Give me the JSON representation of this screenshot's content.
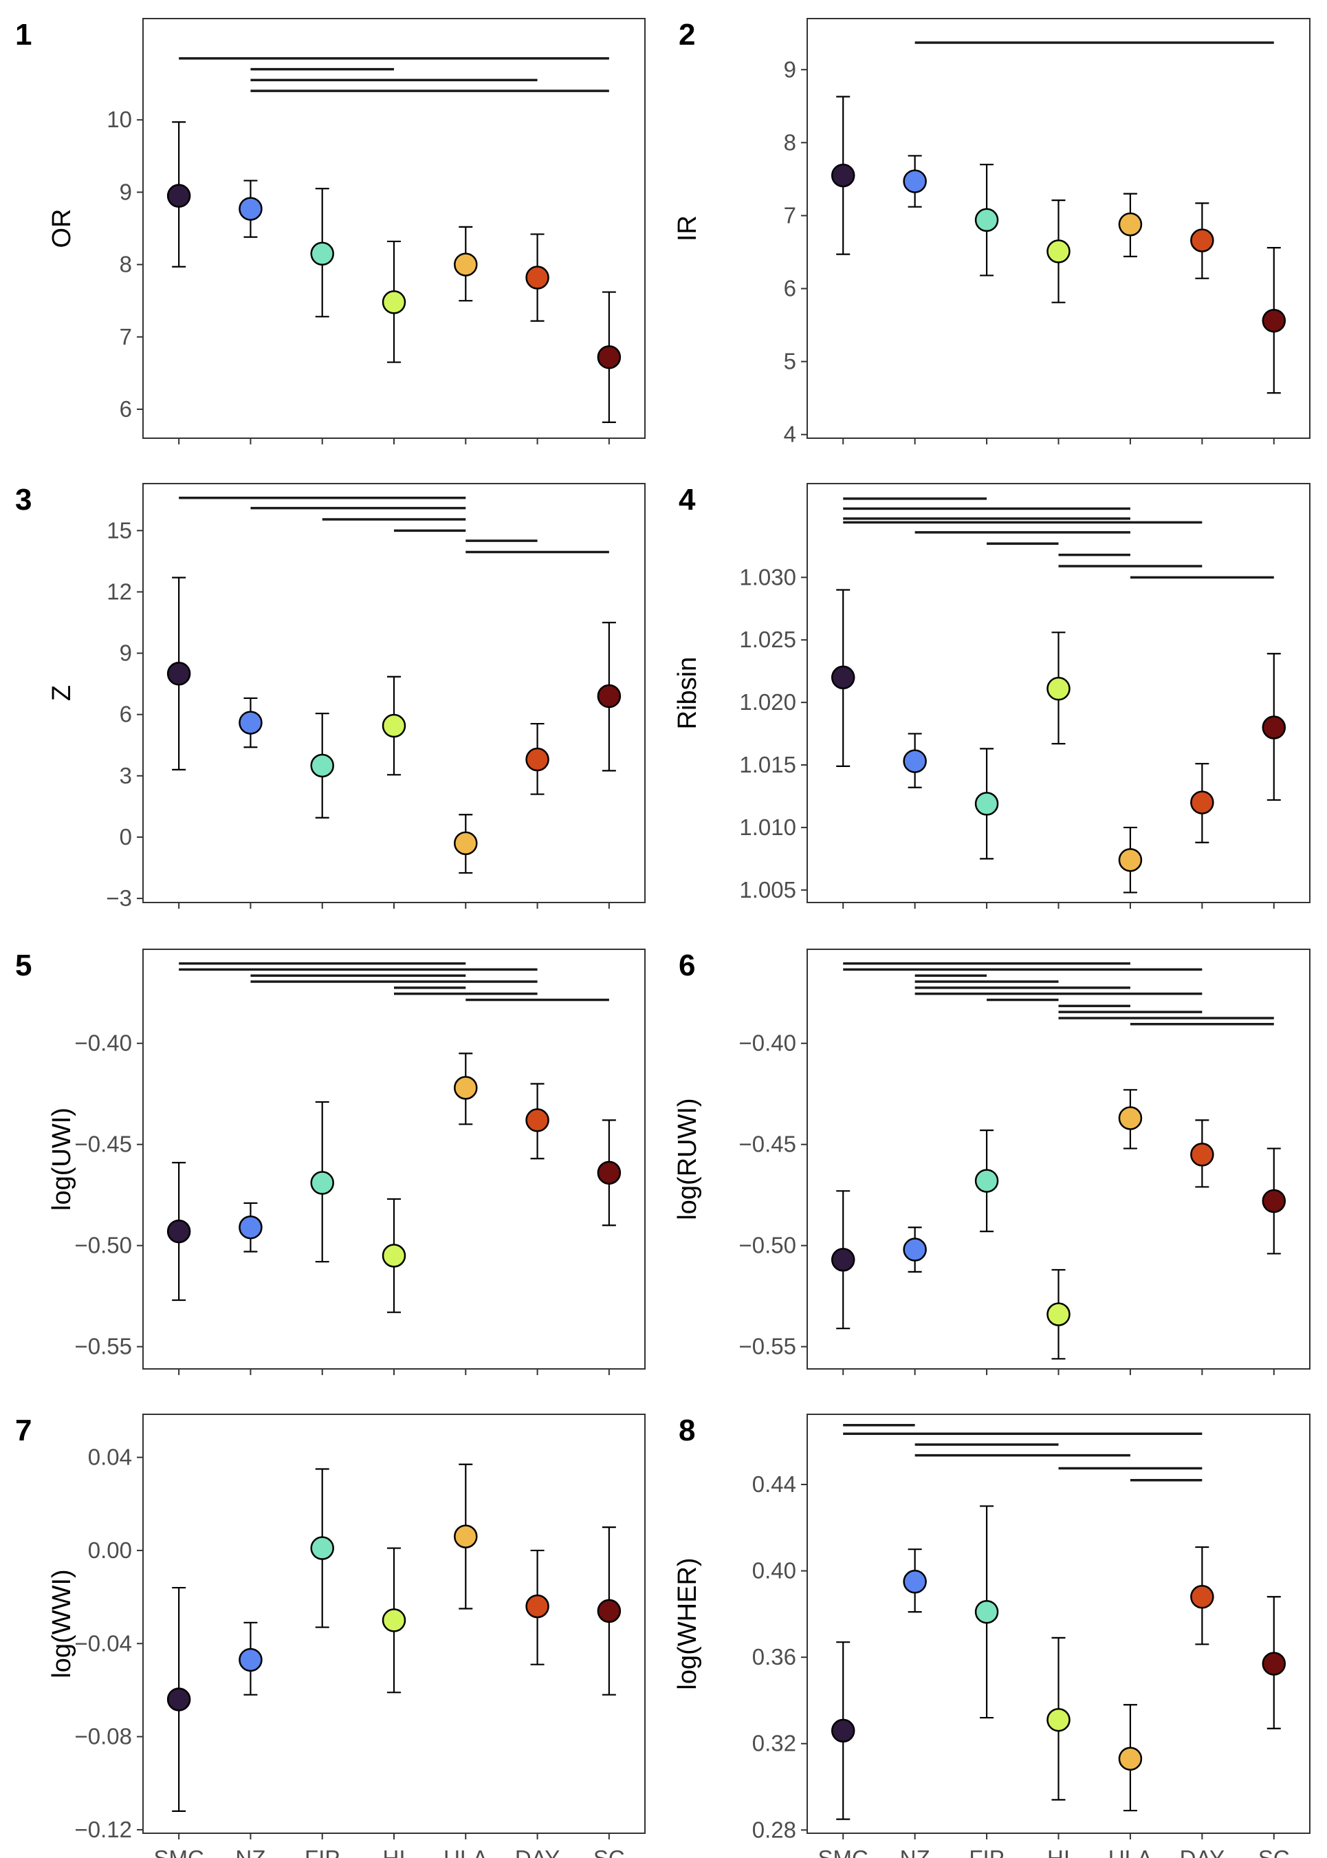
{
  "colors": {
    "SMC": "#2d1a3d",
    "NZ": "#5b85f0",
    "FIP": "#7be3bd",
    "HI": "#d1f55a",
    "ULA": "#f0b84a",
    "DAY": "#d2491a",
    "SC": "#6e0e0e"
  },
  "chart_data": [
    {
      "panel_label": "1",
      "type": "scatter",
      "ylabel": "OR",
      "categories": [
        "SMC",
        "NZ",
        "FIP",
        "HI",
        "ULA",
        "DAY",
        "SC"
      ],
      "values": [
        8.95,
        8.77,
        8.15,
        7.48,
        8.0,
        7.82,
        6.72
      ],
      "error_low": [
        7.97,
        8.38,
        7.28,
        6.65,
        7.5,
        7.22,
        5.82
      ],
      "error_high": [
        9.97,
        9.16,
        9.05,
        8.32,
        8.52,
        8.42,
        7.62
      ],
      "yticks": [
        6,
        7,
        8,
        9,
        10
      ],
      "ytick_labels": [
        "6",
        "7",
        "8",
        "9",
        "10"
      ],
      "ylim": [
        5.6,
        11.4
      ],
      "show_xticklabels": false,
      "comparison_bars": [
        {
          "from": "SMC",
          "to": "SC",
          "y": 10.85
        },
        {
          "from": "NZ",
          "to": "HI",
          "y": 10.7
        },
        {
          "from": "NZ",
          "to": "DAY",
          "y": 10.55
        },
        {
          "from": "NZ",
          "to": "SC",
          "y": 10.4
        }
      ]
    },
    {
      "panel_label": "2",
      "type": "scatter",
      "ylabel": "IR",
      "categories": [
        "SMC",
        "NZ",
        "FIP",
        "HI",
        "ULA",
        "DAY",
        "SC"
      ],
      "values": [
        7.55,
        7.47,
        6.94,
        6.51,
        6.88,
        6.66,
        5.56
      ],
      "error_low": [
        6.47,
        7.12,
        6.18,
        5.81,
        6.44,
        6.14,
        4.57
      ],
      "error_high": [
        8.63,
        7.82,
        7.7,
        7.21,
        7.3,
        7.17,
        6.56
      ],
      "yticks": [
        4,
        5,
        6,
        7,
        8,
        9
      ],
      "ytick_labels": [
        "4",
        "5",
        "6",
        "7",
        "8",
        "9"
      ],
      "ylim": [
        3.95,
        9.7
      ],
      "show_xticklabels": false,
      "comparison_bars": [
        {
          "from": "NZ",
          "to": "SC",
          "y": 9.37
        }
      ]
    },
    {
      "panel_label": "3",
      "type": "scatter",
      "ylabel": "Z",
      "categories": [
        "SMC",
        "NZ",
        "FIP",
        "HI",
        "ULA",
        "DAY",
        "SC"
      ],
      "values": [
        8.0,
        5.6,
        3.5,
        5.45,
        -0.3,
        3.8,
        6.9
      ],
      "error_low": [
        3.3,
        4.4,
        0.95,
        3.05,
        -1.75,
        2.1,
        3.25
      ],
      "error_high": [
        12.7,
        6.8,
        6.05,
        7.85,
        1.1,
        5.55,
        10.5
      ],
      "yticks": [
        -3,
        0,
        3,
        6,
        9,
        12,
        15
      ],
      "ytick_labels": [
        "−3",
        "0",
        "3",
        "6",
        "9",
        "12",
        "15"
      ],
      "ylim": [
        -3.2,
        17.3
      ],
      "show_xticklabels": false,
      "comparison_bars": [
        {
          "from": "SMC",
          "to": "ULA",
          "y": 16.6
        },
        {
          "from": "NZ",
          "to": "ULA",
          "y": 16.1
        },
        {
          "from": "FIP",
          "to": "ULA",
          "y": 15.55
        },
        {
          "from": "HI",
          "to": "ULA",
          "y": 15.0
        },
        {
          "from": "ULA",
          "to": "DAY",
          "y": 14.5
        },
        {
          "from": "ULA",
          "to": "SC",
          "y": 13.95
        }
      ]
    },
    {
      "panel_label": "4",
      "type": "scatter",
      "ylabel": "Ribsin",
      "categories": [
        "SMC",
        "NZ",
        "FIP",
        "HI",
        "ULA",
        "DAY",
        "SC"
      ],
      "values": [
        1.022,
        1.0153,
        1.0119,
        1.0211,
        1.0074,
        1.012,
        1.018
      ],
      "error_low": [
        1.0149,
        1.0132,
        1.0075,
        1.0167,
        1.0048,
        1.0088,
        1.0122
      ],
      "error_high": [
        1.029,
        1.0175,
        1.0163,
        1.0256,
        1.01,
        1.0151,
        1.0239
      ],
      "yticks": [
        1.005,
        1.01,
        1.015,
        1.02,
        1.025,
        1.03
      ],
      "ytick_labels": [
        "1.005",
        "1.010",
        "1.015",
        "1.020",
        "1.025",
        "1.030"
      ],
      "ylim": [
        1.004,
        1.0375
      ],
      "show_xticklabels": false,
      "comparison_bars": [
        {
          "from": "SMC",
          "to": "FIP",
          "y": 1.0363
        },
        {
          "from": "SMC",
          "to": "ULA",
          "y": 1.0355
        },
        {
          "from": "SMC",
          "to": "ULA",
          "y": 1.0347
        },
        {
          "from": "SMC",
          "to": "DAY",
          "y": 1.0344
        },
        {
          "from": "NZ",
          "to": "ULA",
          "y": 1.0336
        },
        {
          "from": "FIP",
          "to": "HI",
          "y": 1.0327
        },
        {
          "from": "HI",
          "to": "ULA",
          "y": 1.0318
        },
        {
          "from": "HI",
          "to": "DAY",
          "y": 1.0309
        },
        {
          "from": "ULA",
          "to": "SC",
          "y": 1.03
        }
      ]
    },
    {
      "panel_label": "5",
      "type": "scatter",
      "ylabel": "log(UWI)",
      "categories": [
        "SMC",
        "NZ",
        "FIP",
        "HI",
        "ULA",
        "DAY",
        "SC"
      ],
      "values": [
        -0.493,
        -0.491,
        -0.469,
        -0.505,
        -0.422,
        -0.438,
        -0.464
      ],
      "error_low": [
        -0.527,
        -0.503,
        -0.508,
        -0.533,
        -0.44,
        -0.457,
        -0.49
      ],
      "error_high": [
        -0.459,
        -0.479,
        -0.429,
        -0.477,
        -0.405,
        -0.42,
        -0.438
      ],
      "yticks": [
        -0.55,
        -0.5,
        -0.45,
        -0.4
      ],
      "ytick_labels": [
        "−0.55",
        "−0.50",
        "−0.45",
        "−0.40"
      ],
      "ylim": [
        -0.561,
        -0.3535
      ],
      "show_xticklabels": false,
      "comparison_bars": [
        {
          "from": "SMC",
          "to": "ULA",
          "y": -0.3605
        },
        {
          "from": "SMC",
          "to": "DAY",
          "y": -0.3635
        },
        {
          "from": "NZ",
          "to": "ULA",
          "y": -0.3665
        },
        {
          "from": "NZ",
          "to": "DAY",
          "y": -0.3695
        },
        {
          "from": "HI",
          "to": "ULA",
          "y": -0.3725
        },
        {
          "from": "HI",
          "to": "DAY",
          "y": -0.3755
        },
        {
          "from": "ULA",
          "to": "SC",
          "y": -0.3785
        }
      ]
    },
    {
      "panel_label": "6",
      "type": "scatter",
      "ylabel": "log(RUWI)",
      "categories": [
        "SMC",
        "NZ",
        "FIP",
        "HI",
        "ULA",
        "DAY",
        "SC"
      ],
      "values": [
        -0.507,
        -0.502,
        -0.468,
        -0.534,
        -0.437,
        -0.455,
        -0.478
      ],
      "error_low": [
        -0.541,
        -0.513,
        -0.493,
        -0.556,
        -0.452,
        -0.471,
        -0.504
      ],
      "error_high": [
        -0.473,
        -0.491,
        -0.443,
        -0.512,
        -0.423,
        -0.438,
        -0.452
      ],
      "yticks": [
        -0.55,
        -0.5,
        -0.45,
        -0.4
      ],
      "ytick_labels": [
        "−0.55",
        "−0.50",
        "−0.45",
        "−0.40"
      ],
      "ylim": [
        -0.561,
        -0.3535
      ],
      "show_xticklabels": false,
      "comparison_bars": [
        {
          "from": "SMC",
          "to": "ULA",
          "y": -0.3605
        },
        {
          "from": "SMC",
          "to": "DAY",
          "y": -0.3635
        },
        {
          "from": "NZ",
          "to": "FIP",
          "y": -0.3665
        },
        {
          "from": "NZ",
          "to": "HI",
          "y": -0.3695
        },
        {
          "from": "NZ",
          "to": "ULA",
          "y": -0.3725
        },
        {
          "from": "NZ",
          "to": "DAY",
          "y": -0.3755
        },
        {
          "from": "FIP",
          "to": "HI",
          "y": -0.3785
        },
        {
          "from": "HI",
          "to": "ULA",
          "y": -0.3815
        },
        {
          "from": "HI",
          "to": "DAY",
          "y": -0.3845
        },
        {
          "from": "HI",
          "to": "SC",
          "y": -0.3875
        },
        {
          "from": "ULA",
          "to": "SC",
          "y": -0.3905
        }
      ]
    },
    {
      "panel_label": "7",
      "type": "scatter",
      "ylabel": "log(WWI)",
      "categories": [
        "SMC",
        "NZ",
        "FIP",
        "HI",
        "ULA",
        "DAY",
        "SC"
      ],
      "values": [
        -0.064,
        -0.047,
        0.001,
        -0.03,
        0.006,
        -0.024,
        -0.026
      ],
      "error_low": [
        -0.112,
        -0.062,
        -0.033,
        -0.061,
        -0.025,
        -0.049,
        -0.062
      ],
      "error_high": [
        -0.016,
        -0.031,
        0.035,
        0.001,
        0.037,
        0.0,
        0.01
      ],
      "yticks": [
        -0.12,
        -0.08,
        -0.04,
        0.0,
        0.04
      ],
      "ytick_labels": [
        "−0.12",
        "−0.08",
        "−0.04",
        "0.00",
        "0.04"
      ],
      "ylim": [
        -0.1215,
        0.0585
      ],
      "show_xticklabels": true,
      "comparison_bars": []
    },
    {
      "panel_label": "8",
      "type": "scatter",
      "ylabel": "log(WHER)",
      "categories": [
        "SMC",
        "NZ",
        "FIP",
        "HI",
        "ULA",
        "DAY",
        "SC"
      ],
      "values": [
        0.326,
        0.395,
        0.381,
        0.331,
        0.313,
        0.388,
        0.357
      ],
      "error_low": [
        0.285,
        0.381,
        0.332,
        0.294,
        0.289,
        0.366,
        0.327
      ],
      "error_high": [
        0.367,
        0.41,
        0.43,
        0.369,
        0.338,
        0.411,
        0.388
      ],
      "yticks": [
        0.28,
        0.32,
        0.36,
        0.4,
        0.44
      ],
      "ytick_labels": [
        "0.28",
        "0.32",
        "0.36",
        "0.40",
        "0.44"
      ],
      "ylim": [
        0.2785,
        0.4725
      ],
      "show_xticklabels": true,
      "comparison_bars": [
        {
          "from": "SMC",
          "to": "NZ",
          "y": 0.4675
        },
        {
          "from": "SMC",
          "to": "DAY",
          "y": 0.4635
        },
        {
          "from": "NZ",
          "to": "HI",
          "y": 0.4585
        },
        {
          "from": "NZ",
          "to": "ULA",
          "y": 0.4535
        },
        {
          "from": "HI",
          "to": "DAY",
          "y": 0.4475
        },
        {
          "from": "ULA",
          "to": "DAY",
          "y": 0.442
        }
      ]
    }
  ]
}
